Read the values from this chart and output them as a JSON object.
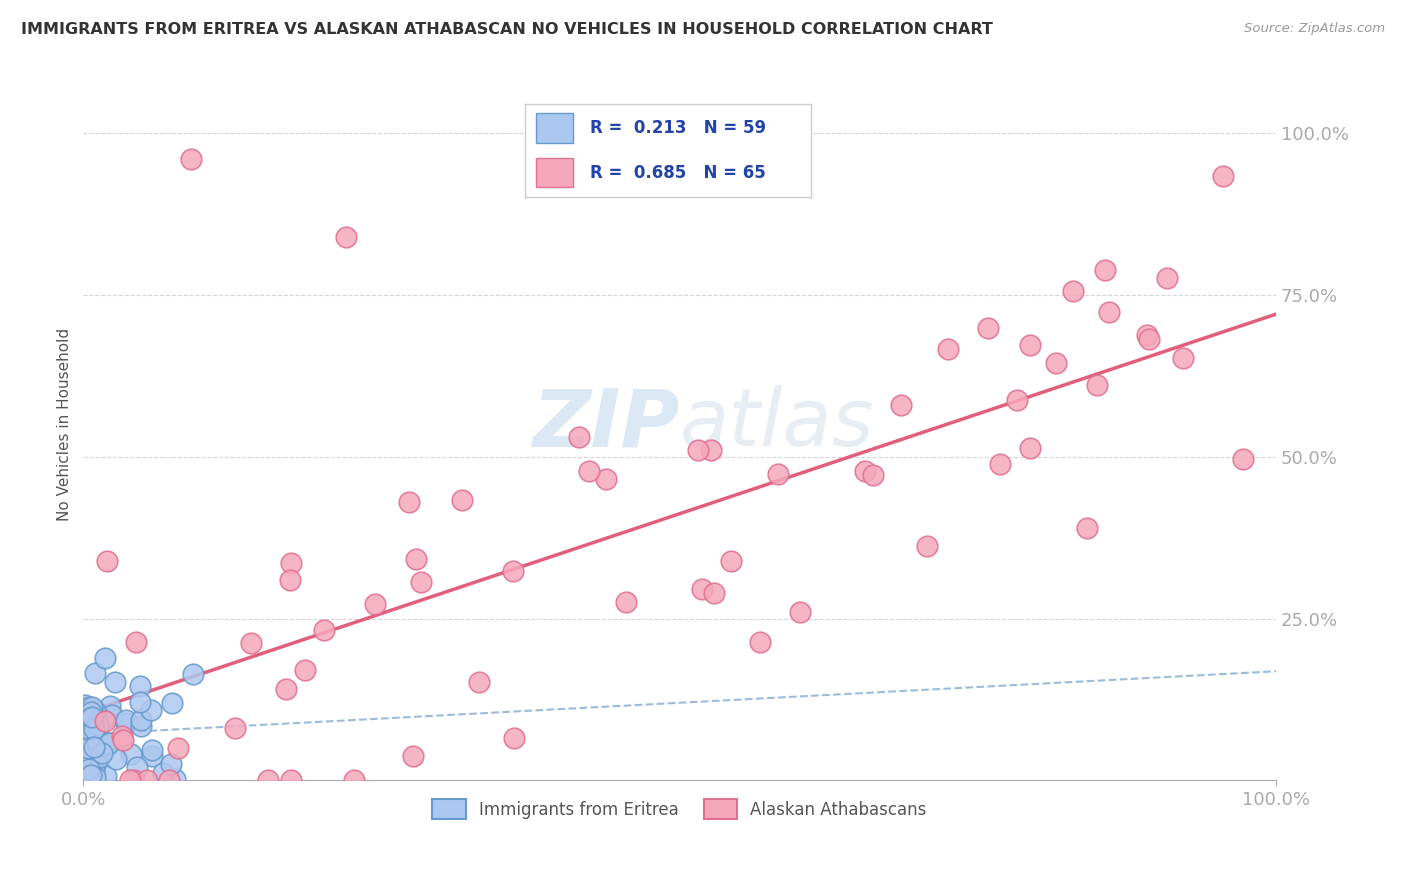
{
  "title": "IMMIGRANTS FROM ERITREA VS ALASKAN ATHABASCAN NO VEHICLES IN HOUSEHOLD CORRELATION CHART",
  "source": "Source: ZipAtlas.com",
  "ylabel": "No Vehicles in Household",
  "legend_eritrea_R": "0.213",
  "legend_eritrea_N": "59",
  "legend_athabascan_R": "0.685",
  "legend_athabascan_N": "65",
  "eritrea_color": "#adc8f0",
  "athabascan_color": "#f5a8bb",
  "eritrea_edge_color": "#6699cc",
  "athabascan_edge_color": "#e07090",
  "trend_eritrea_color": "#8ab0d8",
  "trend_athabascan_color": "#e05575",
  "watermark_color": "#c5d9ed",
  "background_color": "#ffffff",
  "grid_color": "#cccccc",
  "title_color": "#333333",
  "source_color": "#999999",
  "tick_color": "#3355bb"
}
